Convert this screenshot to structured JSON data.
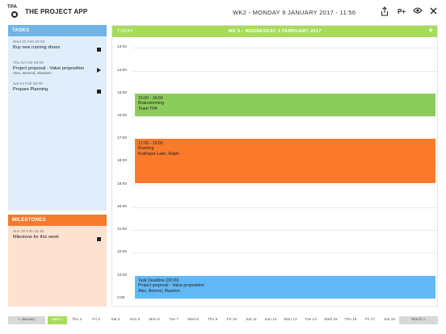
{
  "header": {
    "logo_text": "TPA",
    "app_title": "THE PROJECT APP",
    "datetime": "WK2 - MONDAY 9 JANUARY 2017 - 11:56",
    "icons": {
      "share": "share-icon",
      "add_person": "person-plus-icon",
      "view": "eye-icon",
      "close": "close-icon"
    },
    "pplus_label": "P+"
  },
  "tasks": {
    "title": "TASKS",
    "items": [
      {
        "date": "Wed 01 Feb 00:00",
        "title": "Buy new running shoes",
        "sub": "",
        "icon": "stop-square-icon"
      },
      {
        "date": "Thu 02 Feb 00:00",
        "title": "Project proposal - Value proposition",
        "sub": "Alex, Berend, Maarten",
        "icon": "play-icon"
      },
      {
        "date": "Sat 04 Feb 00:00",
        "title": "Prepare Planning",
        "sub": "",
        "icon": "stop-square-icon"
      }
    ]
  },
  "milestones": {
    "title": "MILESTONES",
    "items": [
      {
        "date": "Sun 05 Feb 16:45",
        "title": "Milestone for this week",
        "icon": "stop-square-icon"
      }
    ]
  },
  "calendar": {
    "today_label": "TODAY",
    "week_label": "WK 5 - WEDNESDAY 1 FEBRUARY 2017",
    "hours": [
      "13:00",
      "14:00",
      "15:00",
      "16:00",
      "17:00",
      "18:00",
      "19:00",
      "20:00",
      "21:00",
      "22:00",
      "23:00",
      "0:00"
    ],
    "events": [
      {
        "time": "15:00 - 16:00",
        "title": "Brainstorming",
        "sub": "Team TPA",
        "color": "#8ccc5c"
      },
      {
        "time": "17:00 - 19:00",
        "title": "Running",
        "sub": "Kralingse Lake, Ralph",
        "color": "#fa7a2a"
      },
      {
        "time": "Task Deadline (00:00)",
        "title": "Project proposal - Value proposition",
        "sub": "Alex, Berend, Maarten",
        "color": "#62b8f4"
      }
    ]
  },
  "daynav": {
    "prev": "« January",
    "next": "March »",
    "days": [
      "Wed 1",
      "Thu 2",
      "Fri 3",
      "Sat 4",
      "Sun 5",
      "Mon 6",
      "Tue 7",
      "Wed 8",
      "Thu 9",
      "Fri 10",
      "Sat 11",
      "Sun 12",
      "Mon 13",
      "Tue 14",
      "Wed 15",
      "Thu 16",
      "Fri 17",
      "Sat 18"
    ],
    "active": "Wed 1"
  },
  "colors": {
    "accent_green": "#a6dc5a",
    "tasks_blue": "#6fb4e4",
    "milestones_orange": "#f47a2e"
  }
}
